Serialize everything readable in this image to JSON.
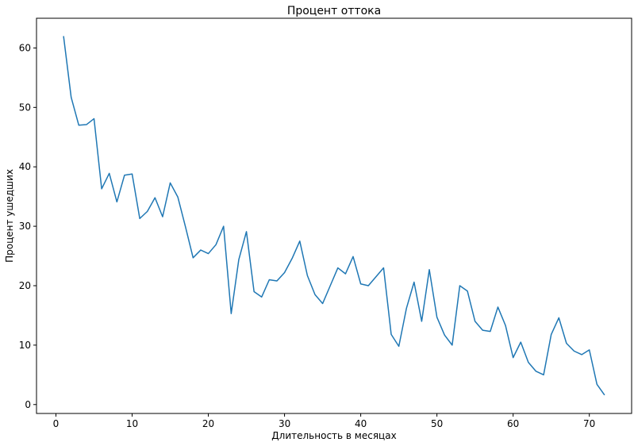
{
  "chart_data": {
    "type": "line",
    "title": "Процент оттока",
    "xlabel": "Длительность в месяцах",
    "ylabel": "Процент ушедших",
    "xlim": [
      -2.55,
      75.55
    ],
    "ylim": [
      -1.5,
      65.0
    ],
    "xticks": [
      0,
      10,
      20,
      30,
      40,
      50,
      60,
      70
    ],
    "xtick_labels": [
      "0",
      "10",
      "20",
      "30",
      "40",
      "50",
      "60",
      "70"
    ],
    "yticks": [
      0,
      10,
      20,
      30,
      40,
      50,
      60
    ],
    "ytick_labels": [
      "0",
      "10",
      "20",
      "30",
      "40",
      "50",
      "60"
    ],
    "grid": false,
    "series": [
      {
        "color": "#1f77b4",
        "x": [
          1,
          2,
          3,
          4,
          5,
          6,
          7,
          8,
          9,
          10,
          11,
          12,
          13,
          14,
          15,
          16,
          17,
          18,
          19,
          20,
          21,
          22,
          23,
          24,
          25,
          26,
          27,
          28,
          29,
          30,
          31,
          32,
          33,
          34,
          35,
          36,
          37,
          38,
          39,
          40,
          41,
          42,
          43,
          44,
          45,
          46,
          47,
          48,
          49,
          50,
          51,
          52,
          53,
          54,
          55,
          56,
          57,
          58,
          59,
          60,
          61,
          62,
          63,
          64,
          65,
          66,
          67,
          68,
          69,
          70,
          71,
          72
        ],
        "values": [
          62.0,
          51.7,
          47.0,
          47.1,
          48.1,
          36.3,
          38.9,
          34.1,
          38.6,
          38.8,
          31.3,
          32.5,
          34.8,
          31.6,
          37.3,
          34.9,
          29.9,
          24.7,
          26.0,
          25.4,
          26.9,
          30.0,
          15.3,
          24.4,
          29.1,
          19.0,
          18.1,
          21.0,
          20.8,
          22.2,
          24.6,
          27.5,
          21.7,
          18.5,
          17.0,
          20.0,
          23.0,
          22.0,
          24.9,
          20.3,
          20.0,
          21.5,
          23.0,
          11.8,
          9.8,
          16.2,
          20.6,
          14.0,
          22.7,
          14.7,
          11.7,
          10.0,
          20.0,
          19.1,
          14.0,
          12.5,
          12.3,
          16.4,
          13.3,
          7.9,
          10.5,
          7.1,
          5.6,
          5.0,
          11.8,
          14.6,
          10.3,
          9.0,
          8.4,
          9.2,
          3.4,
          1.6
        ]
      }
    ]
  }
}
